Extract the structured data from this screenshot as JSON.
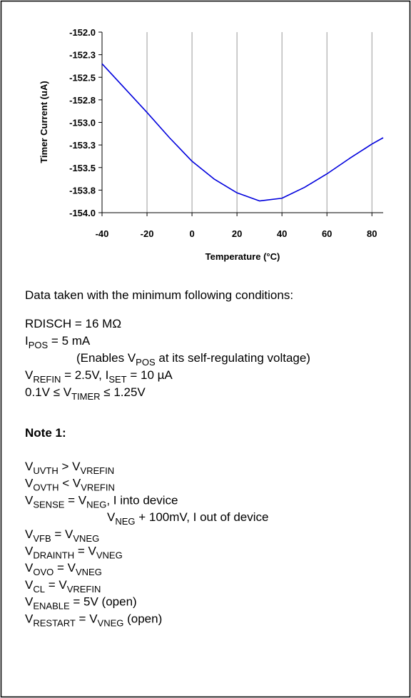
{
  "chart_data": {
    "type": "line",
    "ylabel": "Timer Current (uA)",
    "xlabel": "Temperature (°C)",
    "x": [
      -40,
      -30,
      -20,
      -10,
      0,
      10,
      20,
      30,
      40,
      50,
      60,
      70,
      80,
      85
    ],
    "series": [
      {
        "color": "#0000dd",
        "values": [
          -152.35,
          -152.62,
          -152.89,
          -153.17,
          -153.43,
          -153.63,
          -153.78,
          -153.87,
          -153.84,
          -153.72,
          -153.57,
          -153.4,
          -153.24,
          -153.17
        ]
      }
    ],
    "xlim": [
      -40,
      85
    ],
    "xticks": [
      -40,
      -20,
      0,
      20,
      40,
      60,
      80
    ],
    "ylim": [
      -154,
      -152
    ],
    "yticks": [
      {
        "value": -152,
        "label": "-152.0"
      },
      {
        "value": -152.25,
        "label": "-152.3"
      },
      {
        "value": -152.5,
        "label": "-152.5"
      },
      {
        "value": -152.75,
        "label": "-152.8"
      },
      {
        "value": -153,
        "label": "-153.0"
      },
      {
        "value": -153.25,
        "label": "-153.3"
      },
      {
        "value": -153.5,
        "label": "-153.5"
      },
      {
        "value": -153.75,
        "label": "-153.8"
      },
      {
        "value": -154,
        "label": "-154.0"
      }
    ],
    "grid": "x"
  },
  "conditions": {
    "heading": "Data taken with the minimum following conditions:",
    "lines": [
      [
        {
          "text": "RDISCH = 16 MΩ"
        }
      ],
      [
        {
          "text": "I"
        },
        {
          "sub": "POS"
        },
        {
          "text": " = 5 mA"
        }
      ],
      [
        {
          "text": "(Enables V"
        },
        {
          "sub": "POS"
        },
        {
          "text": " at its self-regulating voltage)"
        }
      ],
      [
        {
          "text": "V"
        },
        {
          "sub": "REFIN"
        },
        {
          "text": " = 2.5V, I"
        },
        {
          "sub": "SET"
        },
        {
          "text": " = 10 µA"
        }
      ],
      [
        {
          "text": "0.1V ≤ V"
        },
        {
          "sub": "TIMER"
        },
        {
          "text": " ≤ 1.25V"
        }
      ]
    ]
  },
  "note": {
    "heading": "Note 1:",
    "lines": [
      [
        {
          "text": "V"
        },
        {
          "sub": "UVTH"
        },
        {
          "text": " > V"
        },
        {
          "sub": "VREFIN"
        }
      ],
      [
        {
          "text": "V"
        },
        {
          "sub": "OVTH"
        },
        {
          "text": " < V"
        },
        {
          "sub": "VREFIN"
        }
      ],
      [
        {
          "text": "V"
        },
        {
          "sub": "SENSE"
        },
        {
          "text": " = V"
        },
        {
          "sub": "NEG"
        },
        {
          "text": ", I into device"
        }
      ],
      [
        {
          "text": "V"
        },
        {
          "sub": "NEG"
        },
        {
          "text": " + 100mV, I out of device"
        }
      ],
      [
        {
          "text": "V"
        },
        {
          "sub": "VFB"
        },
        {
          "text": " = V"
        },
        {
          "sub": "VNEG"
        }
      ],
      [
        {
          "text": "V"
        },
        {
          "sub": "DRAINTH"
        },
        {
          "text": " = V"
        },
        {
          "sub": "VNEG"
        }
      ],
      [
        {
          "text": "V"
        },
        {
          "sub": "OVO"
        },
        {
          "text": " = V"
        },
        {
          "sub": "VNEG"
        }
      ],
      [
        {
          "text": "V"
        },
        {
          "sub": "CL"
        },
        {
          "text": " = V"
        },
        {
          "sub": "VREFIN"
        }
      ],
      [
        {
          "text": "V"
        },
        {
          "sub": "ENABLE"
        },
        {
          "text": " = 5V (open)"
        }
      ],
      [
        {
          "text": "V"
        },
        {
          "sub": "RESTART"
        },
        {
          "text": " = V"
        },
        {
          "sub": "VNEG"
        },
        {
          "text": " (open)"
        }
      ]
    ]
  }
}
